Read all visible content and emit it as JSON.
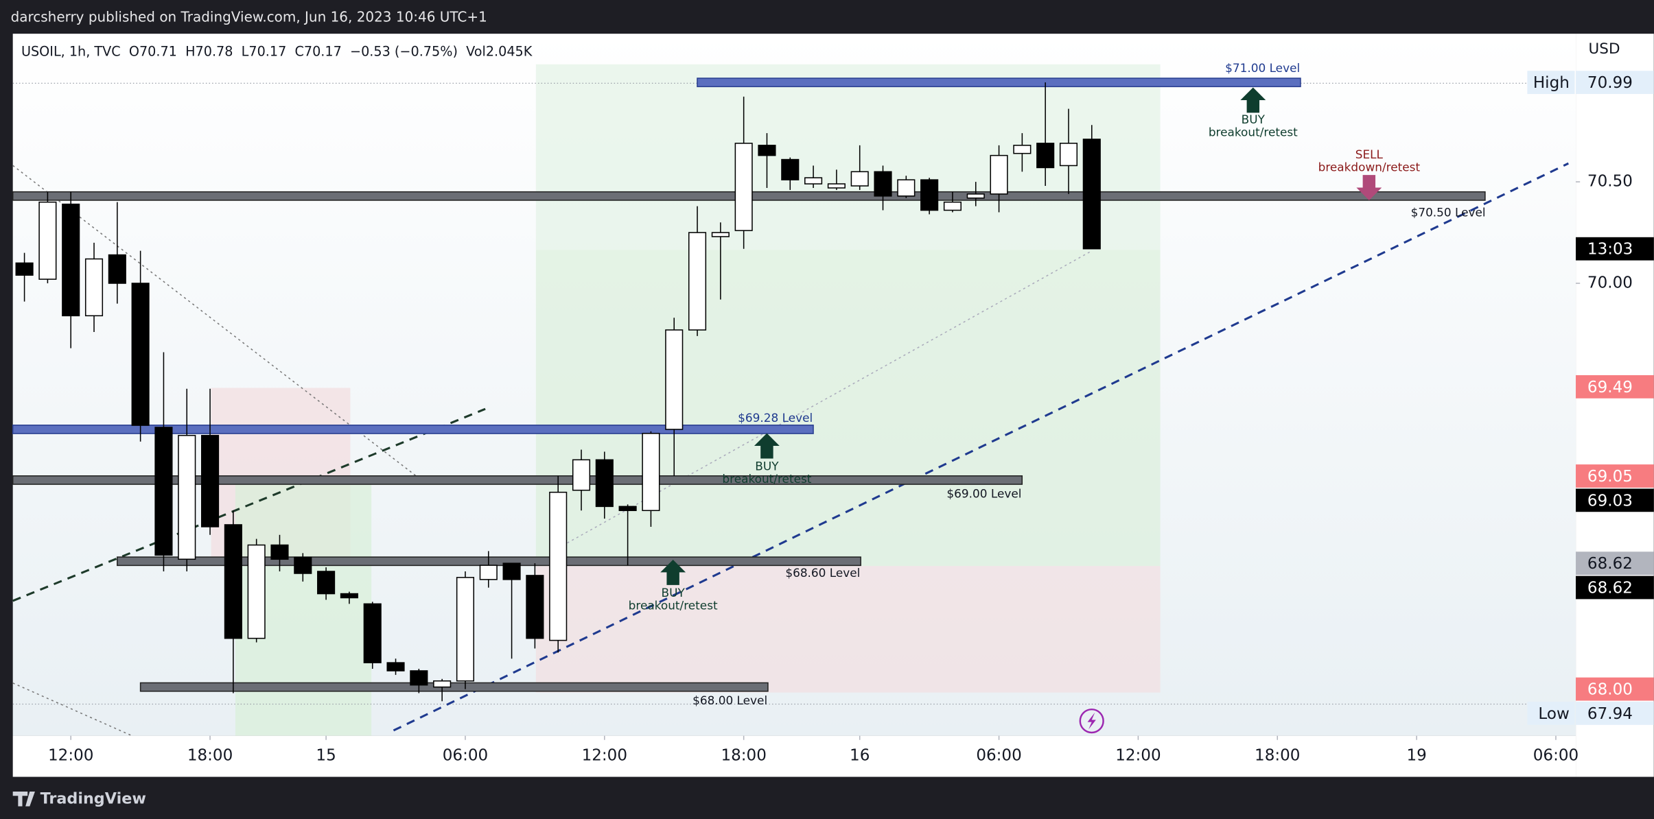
{
  "header": {
    "publisher": "darcsherry published on TradingView.com, Jun 16, 2023 10:46 UTC+1"
  },
  "footer": {
    "brand": "TradingView"
  },
  "chart_data": {
    "type": "candlestick",
    "legend": [
      "USOIL, 1h, TVC",
      "O70.71",
      "H70.78",
      "L70.17",
      "C70.17",
      "−0.53 (−0.75%)",
      "Vol2.045K"
    ],
    "currency": "USD",
    "xlim": [
      -0.5,
      66.86
    ],
    "ylim": [
      67.77,
      71.23
    ],
    "yticks": [
      {
        "value": 70.5,
        "label": "70.50"
      },
      {
        "value": 70,
        "label": "70.00"
      }
    ],
    "xticks": [
      {
        "value": 2,
        "label": "12:00"
      },
      {
        "value": 8,
        "label": "18:00"
      },
      {
        "value": 13,
        "label": "15"
      },
      {
        "value": 19,
        "label": "06:00"
      },
      {
        "value": 25,
        "label": "12:00"
      },
      {
        "value": 31,
        "label": "18:00"
      },
      {
        "value": 36,
        "label": "16"
      },
      {
        "value": 42,
        "label": "06:00"
      },
      {
        "value": 48,
        "label": "12:00"
      },
      {
        "value": 54,
        "label": "18:00"
      },
      {
        "value": 60,
        "label": "19"
      },
      {
        "value": 66,
        "label": "06:00"
      }
    ],
    "ohlc": [
      [
        70.1,
        70.15,
        69.91,
        70.04
      ],
      [
        70.02,
        70.45,
        70.0,
        70.4
      ],
      [
        70.39,
        70.45,
        69.68,
        69.84
      ],
      [
        69.84,
        70.2,
        69.76,
        70.12
      ],
      [
        70.14,
        70.4,
        69.9,
        70.0
      ],
      [
        70.0,
        70.16,
        69.22,
        69.3
      ],
      [
        69.29,
        69.66,
        68.58,
        68.66
      ],
      [
        68.64,
        69.48,
        68.58,
        69.25
      ],
      [
        69.25,
        69.48,
        68.76,
        68.8
      ],
      [
        68.81,
        68.88,
        67.98,
        68.25
      ],
      [
        68.25,
        68.74,
        68.23,
        68.71
      ],
      [
        68.71,
        68.76,
        68.58,
        68.64
      ],
      [
        68.65,
        68.67,
        68.53,
        68.57
      ],
      [
        68.58,
        68.6,
        68.44,
        68.47
      ],
      [
        68.47,
        68.48,
        68.42,
        68.45
      ],
      [
        68.42,
        68.43,
        68.1,
        68.13
      ],
      [
        68.13,
        68.15,
        68.07,
        68.09
      ],
      [
        68.09,
        68.1,
        67.98,
        68.02
      ],
      [
        68.01,
        68.05,
        67.94,
        68.04
      ],
      [
        68.04,
        68.58,
        68.0,
        68.55
      ],
      [
        68.54,
        68.68,
        68.5,
        68.61
      ],
      [
        68.62,
        68.62,
        68.15,
        68.54
      ],
      [
        68.56,
        68.62,
        68.2,
        68.25
      ],
      [
        68.24,
        69.05,
        68.18,
        68.97
      ],
      [
        68.98,
        69.18,
        68.88,
        69.13
      ],
      [
        69.13,
        69.17,
        68.84,
        68.9
      ],
      [
        68.9,
        68.91,
        68.61,
        68.88
      ],
      [
        68.88,
        69.27,
        68.8,
        69.26
      ],
      [
        69.28,
        69.83,
        69.05,
        69.77
      ],
      [
        69.77,
        70.38,
        69.74,
        70.25
      ],
      [
        70.23,
        70.3,
        69.92,
        70.25
      ],
      [
        70.26,
        70.92,
        70.17,
        70.69
      ],
      [
        70.68,
        70.74,
        70.47,
        70.63
      ],
      [
        70.61,
        70.62,
        70.46,
        70.51
      ],
      [
        70.49,
        70.58,
        70.47,
        70.52
      ],
      [
        70.47,
        70.56,
        70.46,
        70.49
      ],
      [
        70.48,
        70.68,
        70.46,
        70.55
      ],
      [
        70.55,
        70.58,
        70.36,
        70.43
      ],
      [
        70.43,
        70.53,
        70.42,
        70.51
      ],
      [
        70.51,
        70.52,
        70.34,
        70.36
      ],
      [
        70.36,
        70.45,
        70.35,
        70.4
      ],
      [
        70.42,
        70.5,
        70.38,
        70.44
      ],
      [
        70.44,
        70.68,
        70.35,
        70.63
      ],
      [
        70.64,
        70.74,
        70.55,
        70.68
      ],
      [
        70.69,
        70.99,
        70.48,
        70.57
      ],
      [
        70.58,
        70.86,
        70.44,
        70.69
      ],
      [
        70.71,
        70.78,
        70.17,
        70.17
      ]
    ],
    "price_labels": [
      {
        "value": 70.99,
        "label": "70.99",
        "tag": "High",
        "style": "light"
      },
      {
        "value": 70.17,
        "label": "13:03",
        "style": "dark"
      },
      {
        "value": 69.49,
        "label": "69.49",
        "style": "red"
      },
      {
        "value": 69.05,
        "label": "69.05",
        "style": "red"
      },
      {
        "value": 69.03,
        "label": "69.03",
        "style": "dark"
      },
      {
        "value": 68.62,
        "label": "68.62",
        "style": "gray"
      },
      {
        "value": 68.62,
        "label": "68.62",
        "style": "dark"
      },
      {
        "value": 68.0,
        "label": "68.00",
        "style": "red"
      },
      {
        "value": 67.94,
        "label": "67.94",
        "tag": "Low",
        "style": "light"
      }
    ],
    "levels": [
      {
        "label": "$71.00 Level",
        "value": 70.99,
        "color": "#5b6fbf"
      },
      {
        "label": "$70.50 Level",
        "value": 70.43,
        "color": "#6b6e75"
      },
      {
        "label": "$69.28 Level",
        "value": 69.28,
        "color": "#5b6fbf"
      },
      {
        "label": "$69.00 Level",
        "value": 69.03,
        "color": "#6b6e75"
      },
      {
        "label": "$68.60 Level",
        "value": 68.63,
        "color": "#6b6e75"
      },
      {
        "label": "$68.00 Level",
        "value": 68.01,
        "color": "#6b6e75"
      }
    ],
    "signals": [
      {
        "action": "BUY",
        "note": "breakout/retest"
      },
      {
        "action": "BUY",
        "note": "breakout/retest"
      },
      {
        "action": "BUY",
        "note": "breakout/retest"
      },
      {
        "action": "SELL",
        "note": "breakdown/retest"
      }
    ]
  }
}
